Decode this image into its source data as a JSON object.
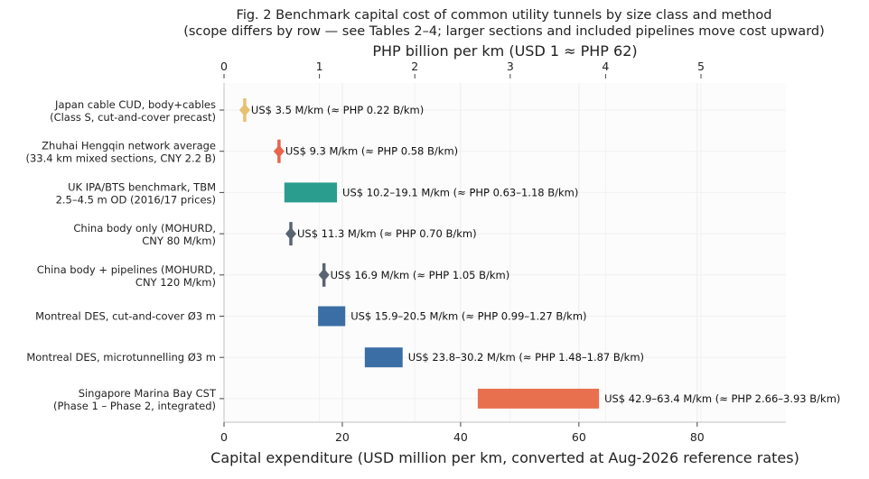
{
  "chart_data": {
    "type": "range-bar",
    "title_line1": "Fig. 2  Benchmark capital cost of common utility tunnels by size class and method",
    "title_line2": "(scope differs by row — see Tables 2–4; larger sections and included pipelines move cost upward)",
    "xlabel": "Capital expenditure (USD million per km, converted at Aug-2026 reference rates)",
    "x2label": "PHP billion per km (USD 1 ≈ PHP 62)",
    "xlim": [
      0,
      95
    ],
    "xticks": [
      0,
      20,
      40,
      60,
      80
    ],
    "x2ticks": [
      0,
      1,
      2,
      3,
      4,
      5
    ],
    "php_per_usd": 62,
    "grid": true,
    "rows": [
      {
        "label1": "Japan cable CUD, body+cables",
        "label2": "(Class S, cut-and-cover precast)",
        "kind": "point",
        "value": 3.5,
        "color": "#e8c170",
        "annotation": "US$ 3.5 M/km (≈ PHP 0.22 B/km)"
      },
      {
        "label1": "Zhuhai Hengqin network average",
        "label2": "(33.4 km mixed sections, CNY 2.2 B)",
        "kind": "point",
        "value": 9.3,
        "color": "#e8644a",
        "annotation": "US$ 9.3 M/km (≈ PHP 0.58 B/km)"
      },
      {
        "label1": "UK IPA/BTS benchmark, TBM",
        "label2": "2.5–4.5 m OD (2016/17 prices)",
        "kind": "range",
        "low": 10.2,
        "high": 19.1,
        "color": "#2a9d8f",
        "annotation": "US$ 10.2–19.1 M/km (≈ PHP 0.63–1.18 B/km)"
      },
      {
        "label1": "China body only (MOHURD,",
        "label2": "CNY 80 M/km)",
        "kind": "point",
        "value": 11.3,
        "color": "#5a6470",
        "annotation": "US$ 11.3 M/km (≈ PHP 0.70 B/km)"
      },
      {
        "label1": "China body + pipelines (MOHURD,",
        "label2": "CNY 120 M/km)",
        "kind": "point",
        "value": 16.9,
        "color": "#5a6470",
        "annotation": "US$ 16.9 M/km (≈ PHP 1.05 B/km)"
      },
      {
        "label1": "Montreal DES, cut-and-cover Ø3 m",
        "label2": "",
        "kind": "range",
        "low": 15.9,
        "high": 20.5,
        "color": "#3a6ea5",
        "annotation": "US$ 15.9–20.5 M/km (≈ PHP 0.99–1.27 B/km)"
      },
      {
        "label1": "Montreal DES, microtunnelling Ø3 m",
        "label2": "",
        "kind": "range",
        "low": 23.8,
        "high": 30.2,
        "color": "#3a6ea5",
        "annotation": "US$ 23.8–30.2 M/km (≈ PHP 1.48–1.87 B/km)"
      },
      {
        "label1": "Singapore Marina Bay CST",
        "label2": "(Phase 1 – Phase 2, integrated)",
        "kind": "range",
        "low": 42.9,
        "high": 63.4,
        "color": "#e8704f",
        "annotation": "US$ 42.9–63.4 M/km (≈ PHP 2.66–3.93 B/km)"
      }
    ]
  }
}
